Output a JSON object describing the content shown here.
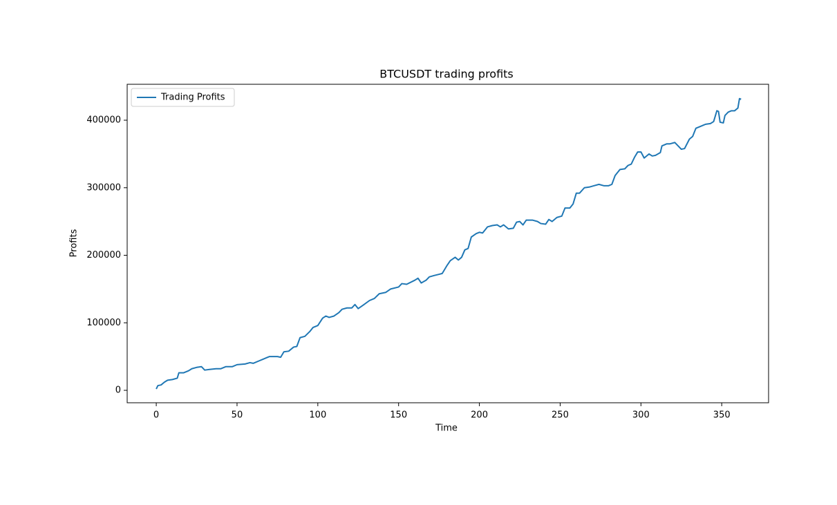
{
  "chart_data": {
    "type": "line",
    "title": "BTCUSDT trading profits",
    "xlabel": "Time",
    "ylabel": "Profits",
    "x": [
      0,
      1,
      3,
      5,
      7,
      10,
      13,
      14,
      17,
      20,
      22,
      25,
      28,
      30,
      33,
      37,
      40,
      43,
      47,
      50,
      55,
      58,
      60,
      64,
      68,
      70,
      75,
      77,
      79,
      82,
      85,
      87,
      89,
      92,
      95,
      97,
      100,
      103,
      105,
      107,
      110,
      113,
      115,
      118,
      121,
      123,
      125,
      128,
      132,
      135,
      138,
      142,
      145,
      150,
      152,
      155,
      160,
      162,
      164,
      167,
      169,
      172,
      177,
      180,
      182,
      185,
      187,
      189,
      191,
      193,
      195,
      198,
      200,
      202,
      205,
      208,
      211,
      213,
      215,
      218,
      221,
      223,
      225,
      227,
      229,
      233,
      236,
      238,
      241,
      243,
      245,
      248,
      251,
      253,
      256,
      258,
      260,
      262,
      265,
      268,
      271,
      274,
      277,
      280,
      282,
      284,
      287,
      290,
      292,
      294,
      296,
      298,
      300,
      302,
      305,
      307,
      309,
      312,
      313,
      316,
      318,
      321,
      323,
      325,
      327,
      330,
      332,
      334,
      337,
      340,
      343,
      345,
      347,
      348,
      349,
      351,
      352,
      354,
      356,
      358,
      360,
      361,
      362
    ],
    "series": [
      {
        "name": "Trading Profits",
        "color": "#1f77b4",
        "values": [
          2000,
          7000,
          8000,
          12000,
          15000,
          16000,
          18000,
          26000,
          26000,
          29000,
          32000,
          34000,
          35000,
          30000,
          31000,
          32000,
          32000,
          35000,
          35000,
          38000,
          39000,
          41000,
          40000,
          44000,
          48000,
          50000,
          50000,
          49000,
          57000,
          58000,
          64000,
          65000,
          78000,
          80000,
          87000,
          93000,
          96000,
          107000,
          110000,
          108000,
          110000,
          115000,
          120000,
          122000,
          122000,
          127000,
          121000,
          126000,
          133000,
          136000,
          143000,
          145000,
          150000,
          153000,
          158000,
          157000,
          163000,
          166000,
          159000,
          163000,
          168000,
          170000,
          173000,
          185000,
          192000,
          197000,
          193000,
          197000,
          208000,
          210000,
          227000,
          232000,
          234000,
          233000,
          242000,
          244000,
          245000,
          242000,
          245000,
          239000,
          240000,
          249000,
          250000,
          245000,
          252000,
          252000,
          250000,
          247000,
          246000,
          253000,
          250000,
          256000,
          258000,
          270000,
          270000,
          276000,
          292000,
          292000,
          300000,
          301000,
          303000,
          305000,
          303000,
          303000,
          305000,
          318000,
          327000,
          328000,
          333000,
          335000,
          345000,
          353000,
          353000,
          344000,
          350000,
          347000,
          348000,
          352000,
          362000,
          365000,
          365000,
          367000,
          362000,
          357000,
          358000,
          372000,
          376000,
          388000,
          391000,
          394000,
          395000,
          398000,
          414000,
          413000,
          397000,
          396000,
          407000,
          412000,
          414000,
          414000,
          418000,
          432000,
          431000
        ]
      }
    ],
    "xlim": [
      -18,
      379
    ],
    "ylim": [
      -18400,
      453200
    ],
    "xticks": [
      0,
      50,
      100,
      150,
      200,
      250,
      300,
      350
    ],
    "yticks": [
      0,
      100000,
      200000,
      300000,
      400000
    ],
    "legend": "upper left"
  }
}
